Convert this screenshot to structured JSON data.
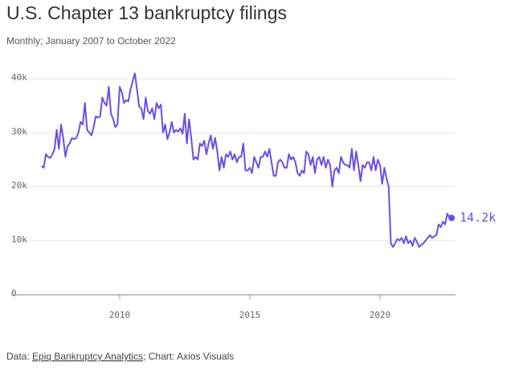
{
  "chart_data": {
    "type": "line",
    "title": "U.S. Chapter 13 bankruptcy filings",
    "subtitle": "Monthly; January 2007 to October 2022",
    "source_prefix": "Data: ",
    "source": "Epiq Bankruptcy Analytics",
    "credit": "; Chart: Axios Visuals",
    "xlim": [
      2006.33,
      2022.9
    ],
    "xticks": [
      2010,
      2015,
      2020
    ],
    "ylim": [
      0,
      40000
    ],
    "yticks": [
      0,
      {
        "value": 10000,
        "label": "10k"
      },
      {
        "value": 20000,
        "label": "20k"
      },
      {
        "value": 30000,
        "label": "30k"
      },
      {
        "value": 40000,
        "label": "40k"
      }
    ],
    "grid": true,
    "x": [
      2007,
      2007.083,
      2007.167,
      2007.25,
      2007.333,
      2007.417,
      2007.5,
      2007.583,
      2007.667,
      2007.75,
      2007.833,
      2007.917,
      2008,
      2008.083,
      2008.167,
      2008.25,
      2008.333,
      2008.417,
      2008.5,
      2008.583,
      2008.667,
      2008.75,
      2008.833,
      2008.917,
      2009,
      2009.083,
      2009.167,
      2009.25,
      2009.333,
      2009.417,
      2009.5,
      2009.583,
      2009.667,
      2009.75,
      2009.833,
      2009.917,
      2010,
      2010.083,
      2010.167,
      2010.25,
      2010.333,
      2010.417,
      2010.5,
      2010.583,
      2010.667,
      2010.75,
      2010.833,
      2010.917,
      2011,
      2011.083,
      2011.167,
      2011.25,
      2011.333,
      2011.417,
      2011.5,
      2011.583,
      2011.667,
      2011.75,
      2011.833,
      2011.917,
      2012,
      2012.083,
      2012.167,
      2012.25,
      2012.333,
      2012.417,
      2012.5,
      2012.583,
      2012.667,
      2012.75,
      2012.833,
      2012.917,
      2013,
      2013.083,
      2013.167,
      2013.25,
      2013.333,
      2013.417,
      2013.5,
      2013.583,
      2013.667,
      2013.75,
      2013.833,
      2013.917,
      2014,
      2014.083,
      2014.167,
      2014.25,
      2014.333,
      2014.417,
      2014.5,
      2014.583,
      2014.667,
      2014.75,
      2014.833,
      2014.917,
      2015,
      2015.083,
      2015.167,
      2015.25,
      2015.333,
      2015.417,
      2015.5,
      2015.583,
      2015.667,
      2015.75,
      2015.833,
      2015.917,
      2016,
      2016.083,
      2016.167,
      2016.25,
      2016.333,
      2016.417,
      2016.5,
      2016.583,
      2016.667,
      2016.75,
      2016.833,
      2016.917,
      2017,
      2017.083,
      2017.167,
      2017.25,
      2017.333,
      2017.417,
      2017.5,
      2017.583,
      2017.667,
      2017.75,
      2017.833,
      2017.917,
      2018,
      2018.083,
      2018.167,
      2018.25,
      2018.333,
      2018.417,
      2018.5,
      2018.583,
      2018.667,
      2018.75,
      2018.833,
      2018.917,
      2019,
      2019.083,
      2019.167,
      2019.25,
      2019.333,
      2019.417,
      2019.5,
      2019.583,
      2019.667,
      2019.75,
      2019.833,
      2019.917,
      2020,
      2020.083,
      2020.167,
      2020.25,
      2020.333,
      2020.417,
      2020.5,
      2020.583,
      2020.667,
      2020.75,
      2020.833,
      2020.917,
      2021,
      2021.083,
      2021.167,
      2021.25,
      2021.333,
      2021.417,
      2021.5,
      2021.583,
      2021.667,
      2021.75,
      2021.833,
      2021.917,
      2022,
      2022.083,
      2022.167,
      2022.25,
      2022.333,
      2022.417,
      2022.5,
      2022.583,
      2022.667,
      2022.75
    ],
    "series": [
      {
        "color": "#6c4fe0",
        "values": [
          23800,
          23500,
          26000,
          25500,
          25300,
          26000,
          27000,
          30500,
          27000,
          31500,
          29000,
          25500,
          27500,
          28000,
          29000,
          28800,
          29000,
          30000,
          32000,
          31500,
          35500,
          30500,
          30000,
          29500,
          31000,
          33000,
          32800,
          33000,
          36500,
          35500,
          35000,
          38500,
          33500,
          32500,
          31000,
          31500,
          38500,
          37500,
          35500,
          36000,
          35800,
          38000,
          39500,
          41000,
          38000,
          34800,
          34500,
          32500,
          36500,
          34000,
          33500,
          34500,
          32500,
          35500,
          34500,
          35200,
          30000,
          31500,
          28800,
          30000,
          32000,
          30000,
          30500,
          30200,
          30800,
          29800,
          33500,
          28000,
          32500,
          29000,
          25000,
          25500,
          25000,
          28000,
          27500,
          28500,
          26000,
          28000,
          29500,
          27000,
          29000,
          26500,
          23000,
          25500,
          23500,
          26000,
          25500,
          26500,
          25000,
          26000,
          24500,
          25500,
          25500,
          28000,
          23000,
          23000,
          23500,
          22500,
          25500,
          24500,
          23500,
          25500,
          25500,
          26500,
          25500,
          27000,
          24500,
          22000,
          22000,
          24500,
          25000,
          24500,
          23500,
          23500,
          26000,
          25000,
          25500,
          24500,
          22500,
          22000,
          23000,
          22500,
          26500,
          26000,
          24000,
          25500,
          22500,
          25000,
          25500,
          24000,
          25500,
          23500,
          25000,
          24000,
          20000,
          23000,
          23500,
          22500,
          25500,
          24500,
          24000,
          24000,
          23500,
          27000,
          23000,
          26500,
          24000,
          21000,
          24000,
          23500,
          24500,
          24500,
          23000,
          25500,
          23000,
          25000,
          24000,
          20500,
          23500,
          21500,
          20000,
          9500,
          8800,
          9500,
          10300,
          10000,
          10500,
          9500,
          10800,
          9500,
          10000,
          9000,
          10500,
          9800,
          8800,
          9200,
          9500,
          10000,
          10500,
          11000,
          10500,
          10800,
          11000,
          13000,
          12500,
          13500,
          13000,
          15000,
          14300,
          14200
        ],
        "value_labels": [
          null,
          null,
          null,
          null,
          null,
          null,
          null,
          null,
          null,
          null,
          null,
          null,
          null,
          null,
          null,
          null,
          null,
          null,
          null,
          null,
          null,
          null,
          null,
          null,
          null,
          null,
          null,
          null,
          null,
          null,
          null,
          null,
          null,
          null,
          null,
          null,
          null,
          null,
          null,
          null,
          null,
          null,
          null,
          null,
          null,
          null,
          null,
          null,
          null,
          null,
          null,
          null,
          null,
          null,
          null,
          null,
          null,
          null,
          null,
          null,
          null,
          null,
          null,
          null,
          null,
          null,
          null,
          null,
          null,
          null,
          null,
          null,
          null,
          null,
          null,
          null,
          null,
          null,
          null,
          null,
          null,
          null,
          null,
          null,
          null,
          null,
          null,
          null,
          null,
          null,
          null,
          null,
          null,
          null,
          null,
          null,
          null,
          null,
          null,
          null,
          null,
          null,
          null,
          null,
          null,
          null,
          null,
          null,
          null,
          null,
          null,
          null,
          null,
          null,
          null,
          null,
          null,
          null,
          null,
          null,
          null,
          null,
          null,
          null,
          null,
          null,
          null,
          null,
          null,
          null,
          null,
          null,
          null,
          null,
          null,
          null,
          null,
          null,
          null,
          null,
          null,
          null,
          null,
          null,
          null,
          null,
          null,
          null,
          null,
          null,
          null,
          null,
          null,
          null,
          null,
          null,
          null,
          null,
          null,
          null,
          null,
          null,
          null,
          null,
          null,
          null,
          null,
          null,
          null,
          null,
          null,
          null,
          null,
          null,
          null,
          null,
          null,
          null,
          null,
          null,
          null,
          null,
          null,
          null,
          null,
          null,
          null,
          null,
          null,
          "14.2k"
        ]
      }
    ]
  }
}
